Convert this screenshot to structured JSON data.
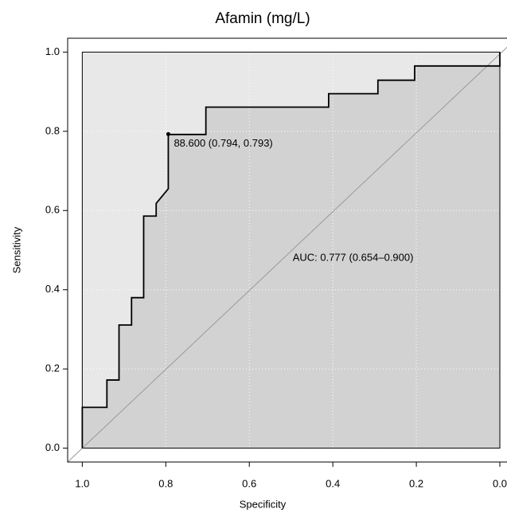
{
  "chart_data": {
    "type": "roc",
    "title": "Afamin (mg/L)",
    "x_label": "Specificity",
    "y_label": "Sensitivity",
    "x": [
      1,
      1,
      0.941,
      0.941,
      0.912,
      0.912,
      0.882,
      0.882,
      0.853,
      0.853,
      0.823,
      0.823,
      0.794,
      0.794,
      0.704,
      0.704,
      0.41,
      0.41,
      0.292,
      0.292,
      0.204,
      0.204,
      0,
      0
    ],
    "values": [
      0,
      0.103,
      0.103,
      0.172,
      0.172,
      0.311,
      0.311,
      0.38,
      0.38,
      0.586,
      0.586,
      0.618,
      0.655,
      0.792,
      0.792,
      0.861,
      0.861,
      0.895,
      0.895,
      0.929,
      0.929,
      0.965,
      0.965,
      1
    ],
    "color": "#000000",
    "threshold_point": {
      "x": 0.794,
      "y": 0.793,
      "label": "88.600 (0.794, 0.793)"
    },
    "auc_label": "AUC: 0.777 (0.654–0.900)",
    "xlim": [
      1.035,
      -0.04
    ],
    "ylim": [
      -0.035,
      1.035
    ],
    "xticks": [
      {
        "value": 1,
        "label": "1.0"
      },
      0.8,
      0.6,
      0.4,
      0.2,
      {
        "value": 0,
        "label": "0.0"
      }
    ],
    "yticks": [
      {
        "value": 0,
        "label": "0.0"
      },
      0.2,
      0.4,
      0.6,
      0.8,
      {
        "value": 1,
        "label": "1.0"
      }
    ],
    "grid": true
  }
}
